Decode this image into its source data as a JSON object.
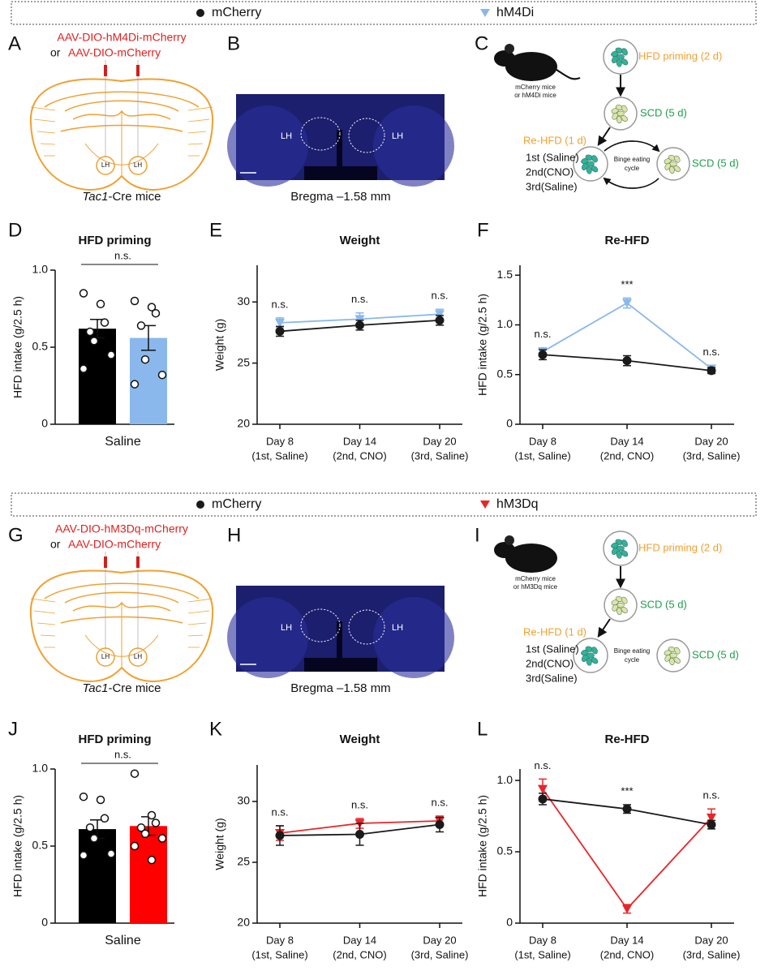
{
  "sections": [
    {
      "legend": [
        "mCherry",
        "hM4Di"
      ],
      "legend_colors": [
        "#1a1a1a",
        "#8ab8ec"
      ],
      "panel_letters": [
        "A",
        "B",
        "C"
      ],
      "injection": {
        "line1": "AAV-DIO-hM4Di-mCherry",
        "or": "or",
        "line2": "AAV-DIO-mCherry",
        "region": "LH",
        "mouse_line": "Tac1",
        "mouse_suffix": "-Cre mice"
      },
      "histology": {
        "region": "LH",
        "caption": "Bregma –1.58 mm"
      },
      "protocol": {
        "mice": [
          "mCherry mice",
          "or hM4Di mice"
        ],
        "priming": "HFD priming (2 d)",
        "scd": "SCD (5 d)",
        "rehfd": "Re-HFD (1 d)",
        "sessions": [
          "1st (Saline)",
          "2nd(CNO)",
          "3rd(Saline)"
        ],
        "cycle": [
          "Binge eating",
          "cycle"
        ]
      }
    },
    {
      "legend": [
        "mCherry",
        "hM3Dq"
      ],
      "legend_colors": [
        "#1a1a1a",
        "#e8262a"
      ],
      "panel_letters": [
        "G",
        "H",
        "I"
      ],
      "injection": {
        "line1": "AAV-DIO-hM3Dq-mCherry",
        "or": "or",
        "line2": "AAV-DIO-mCherry",
        "region": "LH",
        "mouse_line": "Tac1",
        "mouse_suffix": "-Cre mice"
      },
      "histology": {
        "region": "LH",
        "caption": "Bregma –1.58 mm"
      },
      "protocol": {
        "mice": [
          "mCherry mice",
          "or hM3Dq mice"
        ],
        "priming": "HFD priming (2 d)",
        "scd": "SCD (5 d)",
        "rehfd": "Re-HFD (1 d)",
        "sessions": [
          "1st (Saline)",
          "2nd(CNO)",
          "3rd(Saline)"
        ],
        "cycle": [
          "Binge eating",
          "cycle"
        ]
      }
    }
  ],
  "chart_data": [
    {
      "type": "bar",
      "letter": "D",
      "title": "HFD priming",
      "ylabel": "HFD intake (g/2.5 h)",
      "xlabel": "Saline",
      "annotation": "n.s.",
      "ylim": [
        0,
        1
      ],
      "yticks": [
        0,
        0.5,
        {
          "value": 1,
          "label": "1.0"
        }
      ],
      "bars": [
        {
          "color": "#000000",
          "value": 0.62,
          "error": 0.06,
          "points": [
            0.85,
            0.78,
            0.66,
            0.6,
            0.54,
            0.45,
            0.36
          ]
        },
        {
          "color": "#8ab8ec",
          "value": 0.56,
          "error": 0.08,
          "points": [
            0.8,
            0.76,
            0.72,
            0.64,
            0.42,
            0.32,
            0.26
          ]
        }
      ]
    },
    {
      "type": "line",
      "letter": "E",
      "title": "Weight",
      "ylabel": "Weight (g)",
      "categories": [
        "Day 8",
        "Day 14",
        "Day 20"
      ],
      "category_details": [
        "(1st, Saline)",
        "(2nd, CNO)",
        "(3rd, Saline)"
      ],
      "annotations": [
        "n.s.",
        "n.s.",
        "n.s."
      ],
      "ylim": [
        20,
        33
      ],
      "yticks": [
        20,
        25,
        30
      ],
      "series": [
        {
          "color": "#1a1a1a",
          "marker": "circle",
          "values": [
            27.6,
            28.1,
            28.5
          ],
          "errors": [
            0.4,
            0.4,
            0.4
          ]
        },
        {
          "color": "#8ab8ec",
          "marker": "triangle",
          "values": [
            28.3,
            28.6,
            29.0
          ],
          "errors": [
            0.4,
            0.5,
            0.4
          ]
        }
      ]
    },
    {
      "type": "line",
      "letter": "F",
      "title": "Re-HFD",
      "ylabel": "HFD intake (g/2.5 h)",
      "categories": [
        "Day 8",
        "Day 14",
        "Day 20"
      ],
      "category_details": [
        "(1st, Saline)",
        "(2nd, CNO)",
        "(3rd, Saline)"
      ],
      "annotations": [
        "n.s.",
        "***",
        "n.s."
      ],
      "ylim": [
        0,
        1.6
      ],
      "yticks": [
        0,
        0.5,
        {
          "value": 1,
          "label": "1.0"
        },
        1.5
      ],
      "series": [
        {
          "color": "#1a1a1a",
          "marker": "circle",
          "values": [
            0.7,
            0.64,
            0.54
          ],
          "errors": [
            0.05,
            0.05,
            0.03
          ]
        },
        {
          "color": "#8ab8ec",
          "marker": "triangle",
          "values": [
            0.73,
            1.22,
            0.56
          ],
          "errors": [
            0.04,
            0.05,
            0.03
          ]
        }
      ]
    },
    {
      "type": "bar",
      "letter": "J",
      "title": "HFD priming",
      "ylabel": "HFD intake (g/2.5 h)",
      "xlabel": "Saline",
      "annotation": "n.s.",
      "ylim": [
        0,
        1
      ],
      "yticks": [
        0,
        0.5,
        {
          "value": 1,
          "label": "1.0"
        }
      ],
      "bars": [
        {
          "color": "#000000",
          "value": 0.61,
          "error": 0.06,
          "points": [
            0.82,
            0.8,
            0.68,
            0.62,
            0.55,
            0.45,
            0.44
          ]
        },
        {
          "color": "#ff0000",
          "value": 0.63,
          "error": 0.06,
          "points": [
            0.97,
            0.7,
            0.65,
            0.62,
            0.58,
            0.55,
            0.5,
            0.41
          ]
        }
      ]
    },
    {
      "type": "line",
      "letter": "K",
      "title": "Weight",
      "ylabel": "Weight (g)",
      "categories": [
        "Day 8",
        "Day 14",
        "Day 20"
      ],
      "category_details": [
        "(1st, Saline)",
        "(2nd, CNO)",
        "(3rd, Saline)"
      ],
      "annotations": [
        "n.s.",
        "n.s.",
        "n.s."
      ],
      "ylim": [
        20,
        33
      ],
      "yticks": [
        20,
        25,
        30
      ],
      "series": [
        {
          "color": "#1a1a1a",
          "marker": "circle",
          "values": [
            27.2,
            27.3,
            28.1
          ],
          "errors": [
            0.8,
            0.9,
            0.6
          ]
        },
        {
          "color": "#e8262a",
          "marker": "triangle",
          "values": [
            27.4,
            28.2,
            28.4
          ],
          "errors": [
            0.6,
            0.4,
            0.4
          ]
        }
      ]
    },
    {
      "type": "line",
      "letter": "L",
      "title": "Re-HFD",
      "ylabel": "HFD intake (g/2.5 h)",
      "categories": [
        "Day 8",
        "Day 14",
        "Day 20"
      ],
      "category_details": [
        "(1st, Saline)",
        "(2nd, CNO)",
        "(3rd, Saline)"
      ],
      "annotations": [
        "n.s.",
        "***",
        "n.s."
      ],
      "ylim": [
        0,
        1.08
      ],
      "yticks": [
        0,
        0.5,
        {
          "value": 1,
          "label": "1.0"
        }
      ],
      "series": [
        {
          "color": "#1a1a1a",
          "marker": "circle",
          "values": [
            0.87,
            0.8,
            0.69
          ],
          "errors": [
            0.04,
            0.03,
            0.03
          ]
        },
        {
          "color": "#e8262a",
          "marker": "triangle",
          "values": [
            0.94,
            0.1,
            0.74
          ],
          "errors": [
            0.07,
            0.03,
            0.06
          ]
        }
      ]
    }
  ]
}
